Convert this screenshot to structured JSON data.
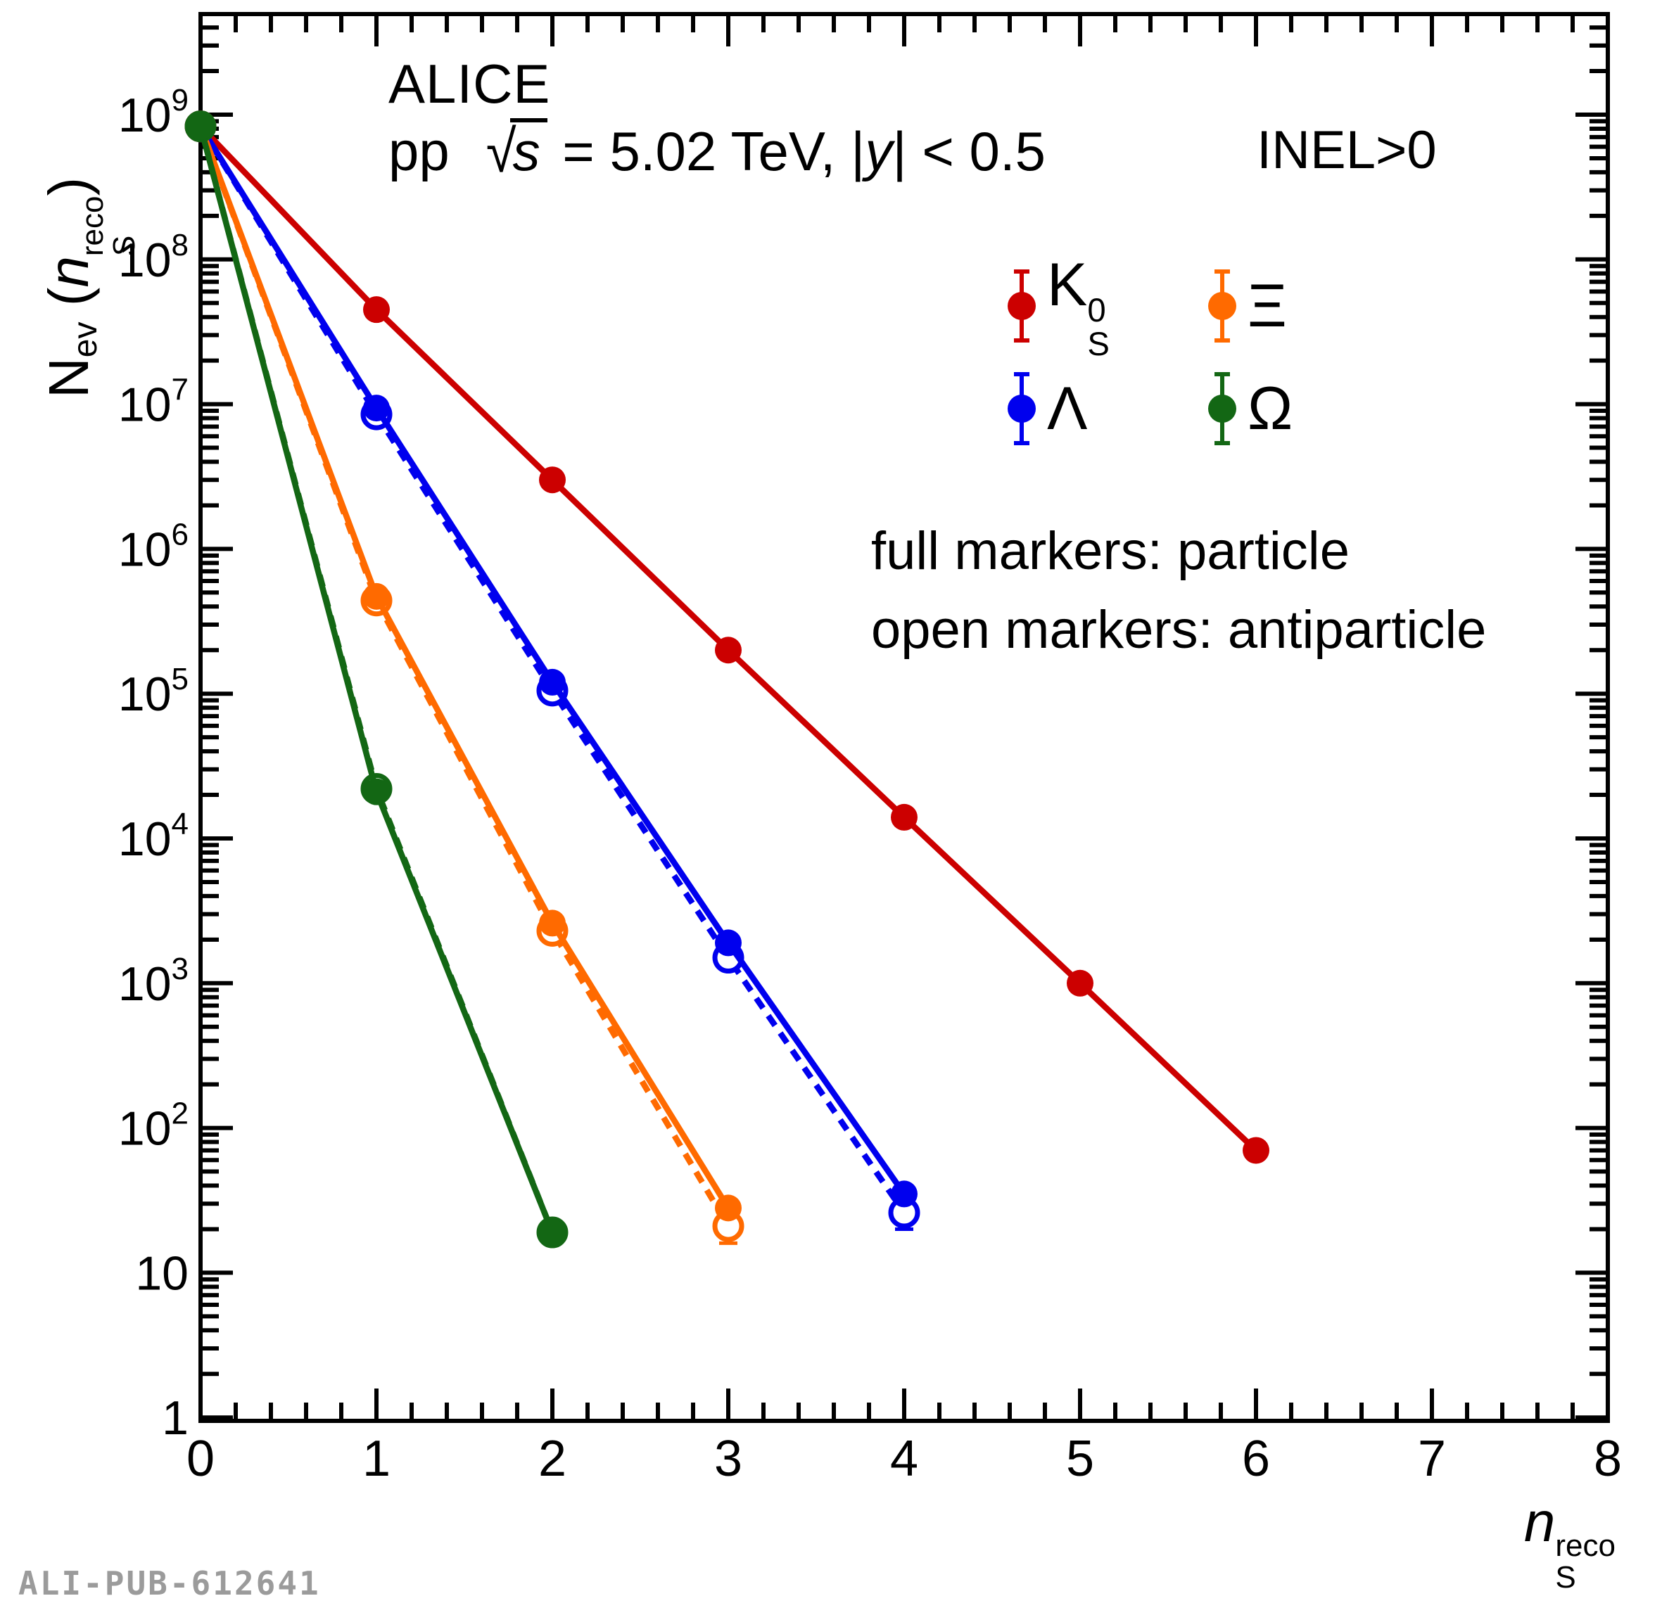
{
  "header": {
    "experiment": "ALICE",
    "system": "pp",
    "sqrt_symbol": "√",
    "sqrt_arg": "s",
    "energy_text": " = 5.02 TeV, |",
    "rapidity_symbol": "y",
    "rapidity_cut": "| < 0.5",
    "event_class": "INEL>0"
  },
  "legend": {
    "items": [
      {
        "id": "k0s",
        "main": "K",
        "sup": "0",
        "sub": "S",
        "color": "#cc0000"
      },
      {
        "id": "xi",
        "main": "Ξ",
        "sup": "",
        "sub": "",
        "color": "#ff6a00"
      },
      {
        "id": "lambda",
        "main": "Λ",
        "sup": "",
        "sub": "",
        "color": "#0000ee"
      },
      {
        "id": "omega",
        "main": "Ω",
        "sup": "",
        "sub": "",
        "color": "#136714"
      }
    ],
    "note_full": "full markers: particle",
    "note_open": "open markers: antiparticle"
  },
  "axes": {
    "y_title": {
      "main": "N",
      "sub": "ev",
      "open": " (",
      "arg": "n",
      "arg_sup": "reco",
      "arg_sub": "S",
      "close": ")"
    },
    "x_title": {
      "arg": "n",
      "sup": "reco",
      "sub": "S"
    },
    "x_tick_labels": [
      "0",
      "1",
      "2",
      "3",
      "4",
      "5",
      "6",
      "7",
      "8"
    ],
    "y_tick_decades": [
      0,
      1,
      2,
      3,
      4,
      5,
      6,
      7,
      8,
      9
    ]
  },
  "footer": {
    "id_label": "ALI-PUB-612641"
  },
  "chart_data": {
    "type": "line",
    "title": "ALICE pp √s = 5.02 TeV, |y| < 0.5, INEL>0",
    "xlabel": "n_S^reco",
    "ylabel": "N_ev (n_S^reco)",
    "x_range": [
      0,
      8
    ],
    "y_scale": "log",
    "y_range": [
      0.95,
      4900000000.0
    ],
    "grid": false,
    "legend_position": "upper right",
    "series": [
      {
        "name": "K0S",
        "particle": "K_S^0",
        "type": "particle",
        "marker": "full",
        "line": "solid",
        "color": "#cc0000",
        "x": [
          0,
          1,
          2,
          3,
          4,
          5,
          6
        ],
        "y": [
          830000000.0,
          45000000.0,
          3000000.0,
          200000.0,
          14000.0,
          1000.0,
          70
        ]
      },
      {
        "name": "Lambda_anti",
        "particle": "Λ̄",
        "type": "antiparticle",
        "marker": "open",
        "line": "dashed",
        "color": "#0000ee",
        "x": [
          0,
          1,
          2,
          3,
          4
        ],
        "y": [
          830000000.0,
          8500000.0,
          105000.0,
          1500.0,
          26
        ],
        "last_point_err": [
          20,
          35
        ]
      },
      {
        "name": "Lambda",
        "particle": "Λ",
        "type": "particle",
        "marker": "full",
        "line": "solid",
        "color": "#0000ee",
        "x": [
          0,
          1,
          2,
          3,
          4
        ],
        "y": [
          830000000.0,
          9400000.0,
          120000.0,
          1900.0,
          35
        ]
      },
      {
        "name": "Xi_anti",
        "particle": "Ξ̄",
        "type": "antiparticle",
        "marker": "open",
        "line": "dashed",
        "color": "#ff6a00",
        "x": [
          0,
          1,
          2,
          3
        ],
        "y": [
          830000000.0,
          440000.0,
          2300.0,
          21
        ],
        "last_point_err": [
          16,
          27
        ]
      },
      {
        "name": "Xi",
        "particle": "Ξ",
        "type": "particle",
        "marker": "full",
        "line": "solid",
        "color": "#ff6a00",
        "x": [
          0,
          1,
          2,
          3
        ],
        "y": [
          830000000.0,
          470000.0,
          2600.0,
          28
        ]
      },
      {
        "name": "Omega_anti",
        "particle": "Ω̄",
        "type": "antiparticle",
        "marker": "open",
        "line": "dashed",
        "color": "#136714",
        "x": [
          0,
          1,
          2
        ],
        "y": [
          830000000.0,
          22000.0,
          19
        ]
      },
      {
        "name": "Omega",
        "particle": "Ω",
        "type": "particle",
        "marker": "full",
        "line": "solid",
        "color": "#136714",
        "x": [
          0,
          1,
          2
        ],
        "y": [
          830000000.0,
          21000.0,
          19
        ]
      }
    ]
  }
}
